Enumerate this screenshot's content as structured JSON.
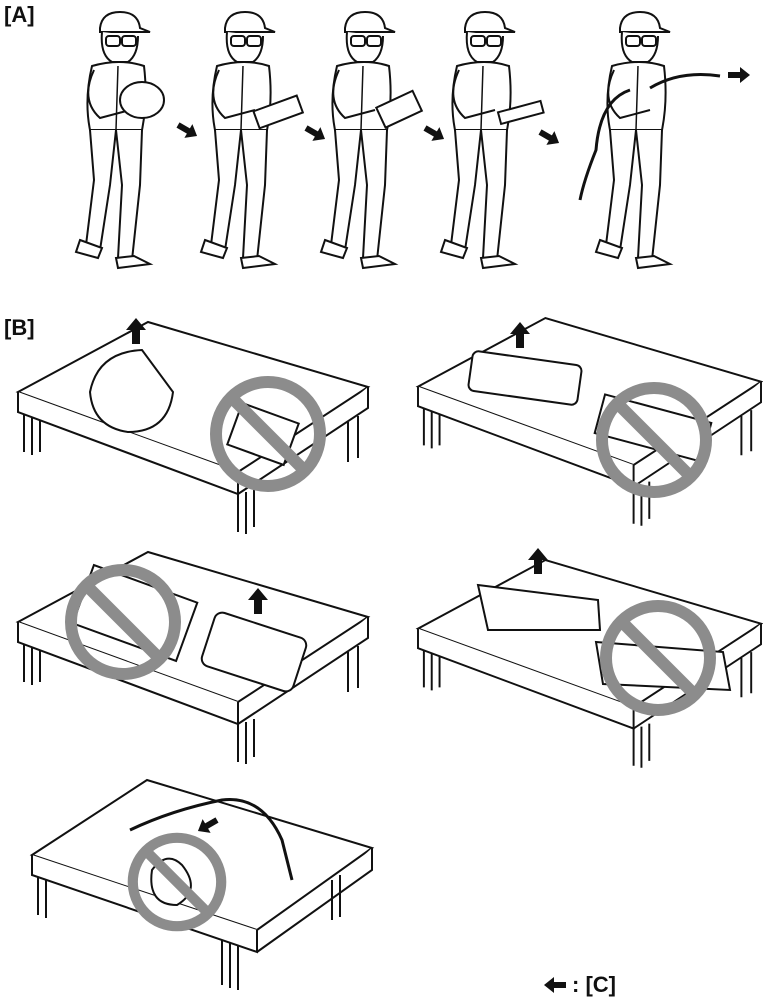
{
  "labels": {
    "section_a": "[A]",
    "section_b": "[B]",
    "legend_c": ": [C]"
  },
  "colors": {
    "line": "#111111",
    "prohibit": "#8c8c8c",
    "fill": "#ffffff"
  },
  "icons": [
    "arrow-icon",
    "prohibited-icon",
    "worker-figure",
    "airbag-module",
    "table"
  ]
}
